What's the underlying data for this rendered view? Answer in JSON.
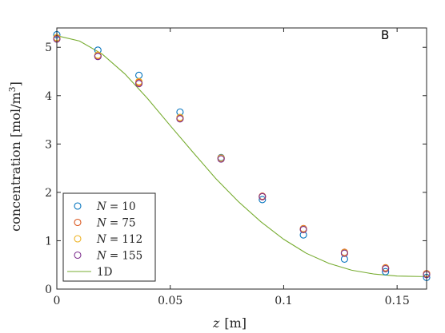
{
  "chart_data": {
    "type": "scatter",
    "panel_label": "B",
    "xlabel_var": "z",
    "xlabel_unit": "[m]",
    "ylabel_main": "concentration [mol/m",
    "ylabel_sup": "3",
    "ylabel_close": "]",
    "xlim": [
      0,
      0.163
    ],
    "ylim": [
      0,
      5.4
    ],
    "xticks": [
      0,
      0.05,
      0.1,
      0.15
    ],
    "xtick_labels": [
      "0",
      "0.05",
      "0.1",
      "0.15"
    ],
    "yticks": [
      0,
      1,
      2,
      3,
      4,
      5
    ],
    "ytick_labels": [
      "0",
      "1",
      "2",
      "3",
      "4",
      "5"
    ],
    "grid": false,
    "legend_position": "bottom-left",
    "x": [
      0,
      0.0181,
      0.0362,
      0.0543,
      0.0724,
      0.0906,
      0.1087,
      0.1268,
      0.1449,
      0.163
    ],
    "series": [
      {
        "name": "N = 10",
        "label_var": "N",
        "label_value": "= 10",
        "color": "#0072BD",
        "marker": "circle",
        "values": [
          5.26,
          4.94,
          4.42,
          3.66,
          2.72,
          1.85,
          1.12,
          0.62,
          0.36,
          0.24
        ]
      },
      {
        "name": "N = 75",
        "label_var": "N",
        "label_value": "= 75",
        "color": "#D95319",
        "marker": "circle",
        "values": [
          5.18,
          4.82,
          4.27,
          3.53,
          2.71,
          1.92,
          1.25,
          0.76,
          0.44,
          0.32
        ]
      },
      {
        "name": "N = 112",
        "label_var": "N",
        "label_value": "= 112",
        "color": "#EDB120",
        "marker": "circle",
        "values": [
          5.2,
          4.84,
          4.29,
          3.55,
          2.71,
          1.91,
          1.24,
          0.75,
          0.43,
          0.31
        ]
      },
      {
        "name": "N = 155",
        "label_var": "N",
        "label_value": "= 155",
        "color": "#7E2F8E",
        "marker": "circle",
        "values": [
          5.17,
          4.81,
          4.25,
          3.52,
          2.69,
          1.91,
          1.23,
          0.74,
          0.42,
          0.3
        ]
      }
    ],
    "line_series": {
      "name": "1D",
      "label_text": "1D",
      "color": "#77AC30",
      "x": [
        0,
        0.01,
        0.02,
        0.03,
        0.04,
        0.05,
        0.06,
        0.07,
        0.08,
        0.09,
        0.1,
        0.11,
        0.12,
        0.13,
        0.14,
        0.15,
        0.16,
        0.163
      ],
      "values": [
        5.24,
        5.13,
        4.86,
        4.45,
        3.94,
        3.38,
        2.83,
        2.29,
        1.81,
        1.39,
        1.03,
        0.74,
        0.53,
        0.39,
        0.31,
        0.27,
        0.26,
        0.26
      ]
    }
  }
}
